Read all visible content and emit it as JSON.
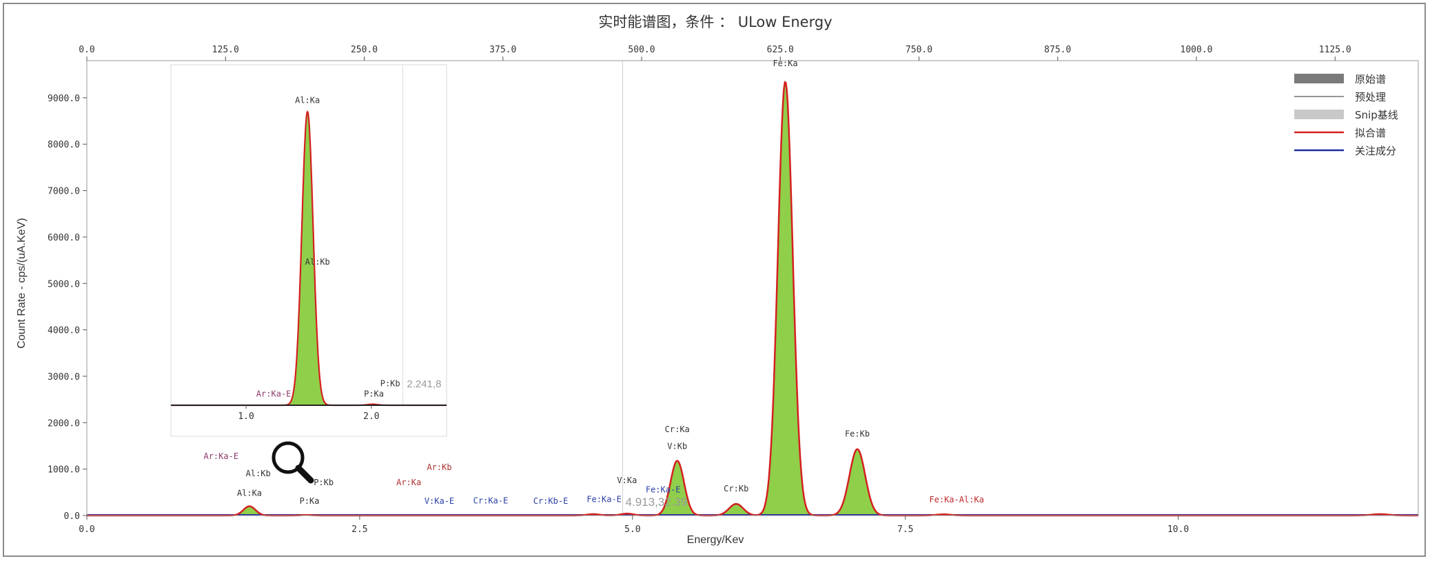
{
  "chart_data": {
    "type": "line",
    "title": "实时能谱图，条件 ： ULow Energy",
    "xlabel": "Energy/Kev",
    "ylabel": "Count Rate - cps/(uA.KeV)",
    "xlim": [
      0,
      12.2
    ],
    "ylim": [
      0,
      9800
    ],
    "x_ticks": [
      "0.0",
      "2.5",
      "5.0",
      "7.5",
      "10.0"
    ],
    "x_tick_values": [
      0,
      2.5,
      5,
      7.5,
      10
    ],
    "y_ticks": [
      "0.0",
      "1000.0",
      "2000.0",
      "3000.0",
      "4000.0",
      "5000.0",
      "6000.0",
      "7000.0",
      "8000.0",
      "9000.0"
    ],
    "y_tick_values": [
      0,
      1000,
      2000,
      3000,
      4000,
      5000,
      6000,
      7000,
      8000,
      9000
    ],
    "top_ticks": [
      "0.0",
      "125.0",
      "250.0",
      "375.0",
      "500.0",
      "625.0",
      "750.0",
      "875.0",
      "1000.0",
      "1125.0"
    ],
    "top_tick_values": [
      0,
      125,
      250,
      375,
      500,
      625,
      750,
      875,
      1000,
      1125
    ],
    "top_range": [
      0,
      1200
    ],
    "cursor": {
      "x": 4.91,
      "readout": "4.913,32.39"
    },
    "peaks": [
      {
        "center": 1.49,
        "height": 200,
        "sigma": 0.055
      },
      {
        "center": 2.01,
        "height": 12,
        "sigma": 0.05
      },
      {
        "center": 4.64,
        "height": 30,
        "sigma": 0.06
      },
      {
        "center": 4.95,
        "height": 40,
        "sigma": 0.06
      },
      {
        "center": 5.41,
        "height": 1180,
        "sigma": 0.062
      },
      {
        "center": 5.95,
        "height": 250,
        "sigma": 0.065
      },
      {
        "center": 6.4,
        "height": 9350,
        "sigma": 0.068
      },
      {
        "center": 7.06,
        "height": 1430,
        "sigma": 0.072
      },
      {
        "center": 7.85,
        "height": 25,
        "sigma": 0.07
      },
      {
        "center": 11.85,
        "height": 30,
        "sigma": 0.08
      }
    ],
    "labels": [
      {
        "text": "Ar:Ka-E",
        "x": 1.23,
        "y": 1220,
        "color": "#8b3a6a"
      },
      {
        "text": "Al:Kb",
        "x": 1.57,
        "y": 850,
        "color": "#333333"
      },
      {
        "text": "Al:Ka",
        "x": 1.49,
        "y": 420,
        "color": "#333333"
      },
      {
        "text": "P:Kb",
        "x": 2.17,
        "y": 650,
        "color": "#333333"
      },
      {
        "text": "P:Ka",
        "x": 2.04,
        "y": 250,
        "color": "#333333"
      },
      {
        "text": "Ar:Kb",
        "x": 3.23,
        "y": 980,
        "color": "#b03030"
      },
      {
        "text": "Ar:Ka",
        "x": 2.95,
        "y": 650,
        "color": "#b03030"
      },
      {
        "text": "V:Ka-E",
        "x": 3.23,
        "y": 250,
        "color": "#2a3fa8"
      },
      {
        "text": "Cr:Ka-E",
        "x": 3.7,
        "y": 260,
        "color": "#2a3fa8"
      },
      {
        "text": "Cr:Kb-E",
        "x": 4.25,
        "y": 250,
        "color": "#2a3fa8"
      },
      {
        "text": "Fe:Ka-E",
        "x": 4.74,
        "y": 290,
        "color": "#2a3fa8"
      },
      {
        "text": "V:Ka",
        "x": 4.95,
        "y": 700,
        "color": "#333333"
      },
      {
        "text": "Fe:Ka-E",
        "x": 5.28,
        "y": 500,
        "color": "#2a3fa8"
      },
      {
        "text": "Cr:Ka",
        "x": 5.41,
        "y": 1800,
        "color": "#333333"
      },
      {
        "text": "V:Kb",
        "x": 5.41,
        "y": 1430,
        "color": "#333333"
      },
      {
        "text": "Cr:Kb",
        "x": 5.95,
        "y": 520,
        "color": "#333333"
      },
      {
        "text": "Fe:Ka",
        "x": 6.4,
        "y": 9680,
        "color": "#333333"
      },
      {
        "text": "Fe:Kb",
        "x": 7.06,
        "y": 1700,
        "color": "#333333"
      },
      {
        "text": "Fe:Ka-Al:Ka",
        "x": 7.97,
        "y": 280,
        "color": "#c02a2a"
      }
    ],
    "legend": {
      "placement": "top-right",
      "items": [
        {
          "name": "原始谱",
          "style": "fill",
          "color": "#7a7a7a"
        },
        {
          "name": "预处理",
          "style": "line",
          "color": "#555555"
        },
        {
          "name": "Snip基线",
          "style": "fill",
          "color": "#c9c9c9"
        },
        {
          "name": "拟合谱",
          "style": "line",
          "color": "#d42020"
        },
        {
          "name": "关注成分",
          "style": "line",
          "color": "#1a2aa0"
        }
      ]
    },
    "inset": {
      "xlim": [
        0.4,
        2.6
      ],
      "ylim": [
        0,
        9800
      ],
      "x_ticks": [
        "1.0",
        "2.0"
      ],
      "x_tick_values": [
        1.0,
        2.0
      ],
      "cursor": {
        "x": 2.25,
        "readout": "2.241,8"
      },
      "peaks": [
        {
          "center": 1.49,
          "height": 8450,
          "sigma": 0.045
        },
        {
          "center": 2.01,
          "height": 30,
          "sigma": 0.04
        }
      ],
      "labels": [
        {
          "text": "Al:Ka",
          "x": 1.49,
          "y": 8700,
          "color": "#333333"
        },
        {
          "text": "Al:Kb",
          "x": 1.57,
          "y": 4050,
          "color": "#333333"
        },
        {
          "text": "Ar:Ka-E",
          "x": 1.22,
          "y": 250,
          "color": "#8b3a6a"
        },
        {
          "text": "P:Kb",
          "x": 2.15,
          "y": 550,
          "color": "#333333"
        },
        {
          "text": "P:Ka",
          "x": 2.02,
          "y": 250,
          "color": "#333333"
        }
      ]
    },
    "colors": {
      "fill": "#8fcf4a",
      "fit_line": "#d42020",
      "component_line": "#1a2aa0",
      "cursor_text": "#9a9a9a"
    }
  }
}
